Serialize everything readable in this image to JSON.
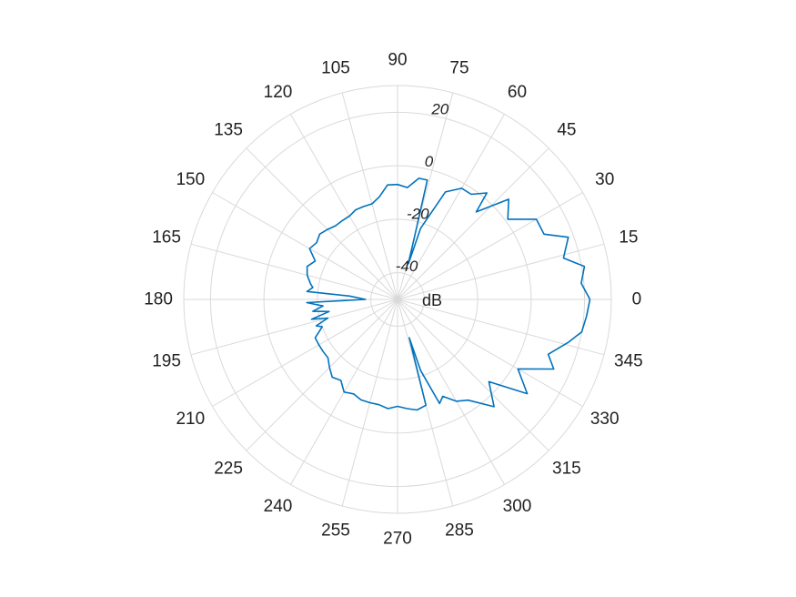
{
  "chart_data": {
    "type": "polar-line",
    "theta_unit": "degrees",
    "r_unit_label": "dB",
    "r_range": [
      -50,
      30
    ],
    "r_ticks": [
      -40,
      -20,
      0,
      20
    ],
    "theta_ticks": [
      0,
      15,
      30,
      45,
      60,
      75,
      90,
      105,
      120,
      135,
      150,
      165,
      180,
      195,
      210,
      225,
      240,
      255,
      270,
      285,
      300,
      315,
      330,
      345
    ],
    "grid": true,
    "line_color": "#0072BD",
    "series": [
      {
        "theta": [
          0,
          5,
          10,
          14,
          20,
          24,
          30,
          36,
          42,
          48,
          50,
          55,
          60,
          66,
          72,
          73,
          76,
          80,
          85,
          90,
          95,
          100,
          105,
          110,
          115,
          120,
          125,
          130,
          135,
          140,
          145,
          150,
          155,
          160,
          165,
          170,
          172,
          175,
          176,
          180,
          182,
          185,
          188,
          190,
          193,
          195,
          198,
          200,
          205,
          210,
          215,
          220,
          225,
          230,
          235,
          240,
          245,
          250,
          255,
          260,
          265,
          270,
          275,
          280,
          285,
          287,
          288,
          292,
          295,
          300,
          305,
          312,
          318,
          324,
          330,
          336,
          340,
          346,
          350,
          355,
          360
        ],
        "r": [
          22,
          19,
          21,
          14,
          18,
          10,
          10,
          1,
          6,
          -6,
          2,
          -2,
          -2,
          -6,
          -22,
          -36,
          -4,
          -4,
          -8,
          -7,
          -7,
          -11,
          -13,
          -13,
          -13,
          -14,
          -14,
          -14,
          -13,
          -12,
          -13,
          -12,
          -16,
          -14,
          -15,
          -17,
          -18,
          -16,
          -32,
          -38,
          -16,
          -22,
          -18,
          -24,
          -17,
          -23,
          -18,
          -20,
          -16,
          -16,
          -16,
          -16,
          -14,
          -12,
          -13,
          -10,
          -11,
          -10,
          -10,
          -10,
          -9,
          -10,
          -9,
          -8,
          -9,
          -35,
          -22,
          -8,
          -10,
          -6,
          -4,
          4,
          -4,
          10,
          2,
          14,
          10,
          16,
          20,
          21,
          22
        ]
      }
    ]
  }
}
